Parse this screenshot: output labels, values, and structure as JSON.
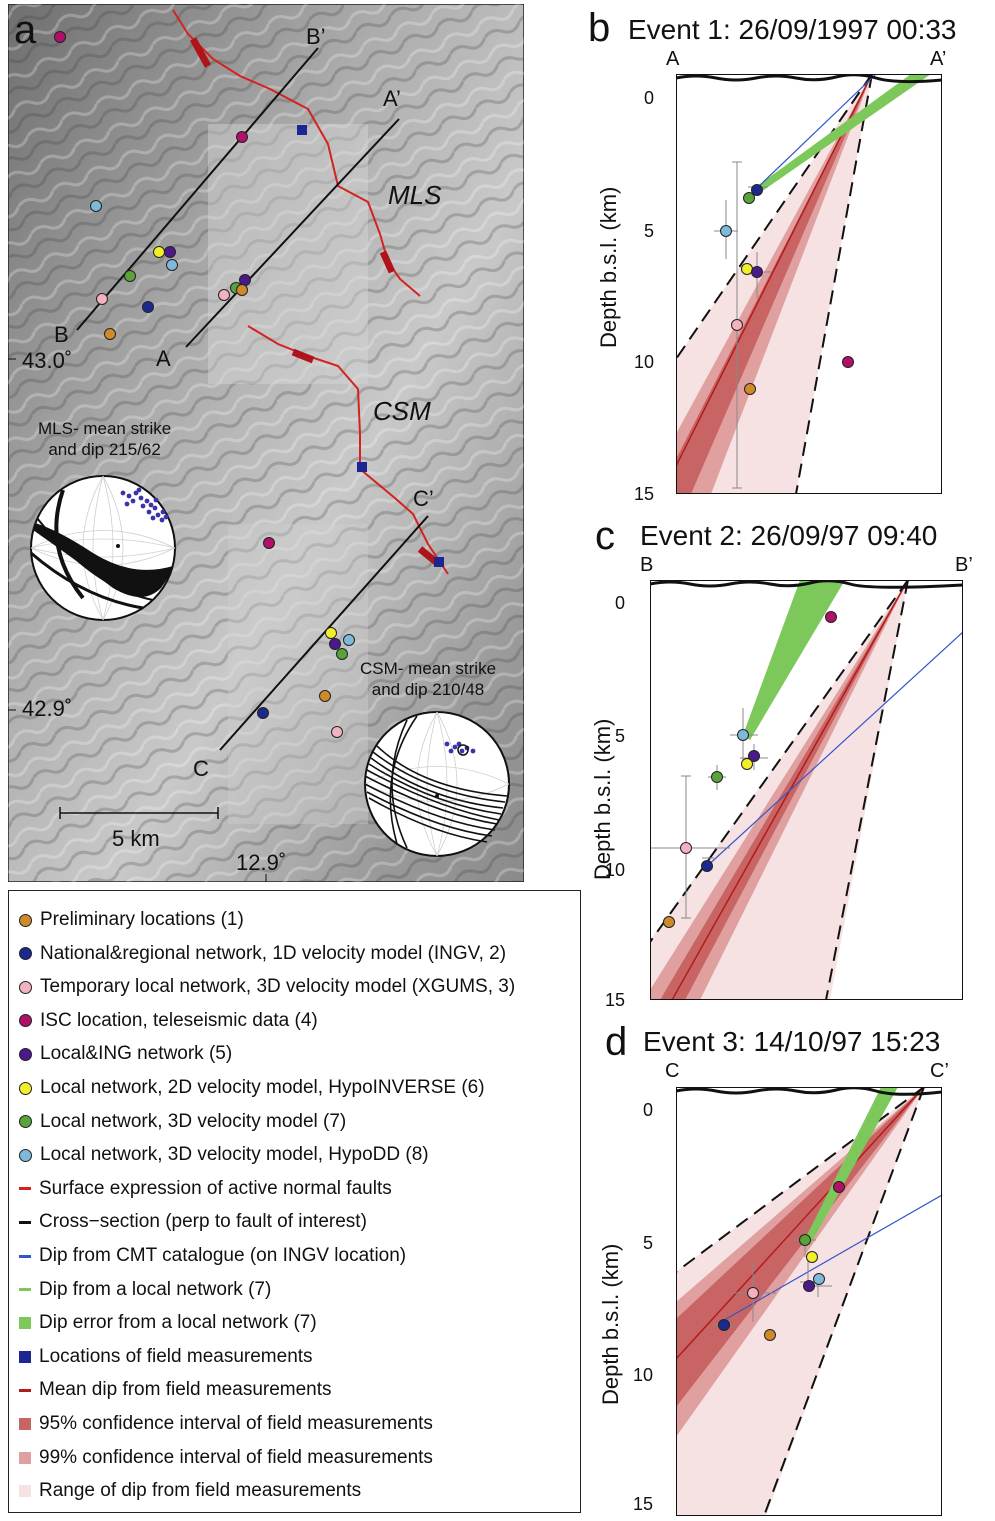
{
  "colors": {
    "prelim": "#cf8a2a",
    "ingv": "#1c2a8f",
    "xgums": "#f2b2c0",
    "isc": "#b0106a",
    "local_ing": "#4a1a8a",
    "hypoinverse": "#f2ee2a",
    "local3d": "#58a33a",
    "hypodd": "#7fb9d9",
    "fault_red": "#d4231f",
    "blue_line": "#3355cc",
    "green_dip": "#7cc85a",
    "field_square": "#1d2593",
    "ci95": "#c96464",
    "ci99": "#e0a0a0",
    "range": "#f6e2e2"
  },
  "panel_a": {
    "label": "a",
    "section_labels": [
      "B’",
      "A’",
      "B",
      "A",
      "C’",
      "C"
    ],
    "fault_labels": [
      "MLS",
      "CSM"
    ],
    "lat_labels": [
      "43.0˚",
      "42.9˚"
    ],
    "lon_label": "12.9˚",
    "scale_label": "5 km",
    "stereonet_mls": [
      "MLS- mean strike",
      "and dip 215/62"
    ],
    "stereonet_csm": [
      "CSM- mean strike",
      "and dip 210/48"
    ]
  },
  "panel_b": {
    "label": "b",
    "title": "Event 1: 26/09/1997 00:33",
    "left_end": "A",
    "right_end": "A’",
    "ylabel": "Depth b.s.l. (km)",
    "yticks": [
      "0",
      "5",
      "10",
      "15"
    ]
  },
  "panel_c": {
    "label": "c",
    "title": "Event 2: 26/09/97 09:40",
    "left_end": "B",
    "right_end": "B’",
    "ylabel": "Depth b.s.l. (km)",
    "yticks": [
      "0",
      "5",
      "10",
      "15"
    ]
  },
  "panel_d": {
    "label": "d",
    "title": "Event 3: 14/10/97 15:23",
    "left_end": "C",
    "right_end": "C’",
    "ylabel": "Depth b.s.l. (km)",
    "yticks": [
      "0",
      "5",
      "10",
      "15"
    ]
  },
  "legend": [
    {
      "type": "dot",
      "color": "#cf8a2a",
      "label": "Preliminary locations (1)"
    },
    {
      "type": "dot",
      "color": "#1c2a8f",
      "label": "National&regional network, 1D velocity model (INGV, 2)"
    },
    {
      "type": "dot",
      "color": "#f2b2c0",
      "label": "Temporary local network, 3D velocity model (XGUMS, 3)"
    },
    {
      "type": "dot",
      "color": "#b0106a",
      "label": "ISC location, teleseismic data (4)"
    },
    {
      "type": "dot",
      "color": "#4a1a8a",
      "label": "Local&ING network (5)"
    },
    {
      "type": "dot",
      "color": "#f2ee2a",
      "label": "Local network, 2D velocity model, HypoINVERSE (6)"
    },
    {
      "type": "dot",
      "color": "#58a33a",
      "label": "Local network, 3D velocity model (7)"
    },
    {
      "type": "dot",
      "color": "#7fb9d9",
      "label": "Local network, 3D velocity model, HypoDD (8)"
    },
    {
      "type": "line",
      "color": "#d4231f",
      "label": "Surface expression of active normal faults"
    },
    {
      "type": "line",
      "color": "#111111",
      "label": "Cross−section (perp to fault of interest)"
    },
    {
      "type": "line",
      "color": "#3355cc",
      "label": "Dip from CMT catalogue (on INGV location)"
    },
    {
      "type": "line",
      "color": "#7cc85a",
      "label": "Dip from a local network (7)"
    },
    {
      "type": "square",
      "color": "#7cc85a",
      "label": "Dip error from a local network (7)"
    },
    {
      "type": "square",
      "color": "#1d2593",
      "label": "Locations of field measurements"
    },
    {
      "type": "line",
      "color": "#b31b1b",
      "label": "Mean dip from field measurements"
    },
    {
      "type": "square",
      "color": "#c96464",
      "label": "95% confidence interval of field measurements"
    },
    {
      "type": "square",
      "color": "#e0a0a0",
      "label": "99% confidence interval of field measurements"
    },
    {
      "type": "square",
      "color": "#f6e2e2",
      "label": "Range of dip from field measurements"
    }
  ]
}
